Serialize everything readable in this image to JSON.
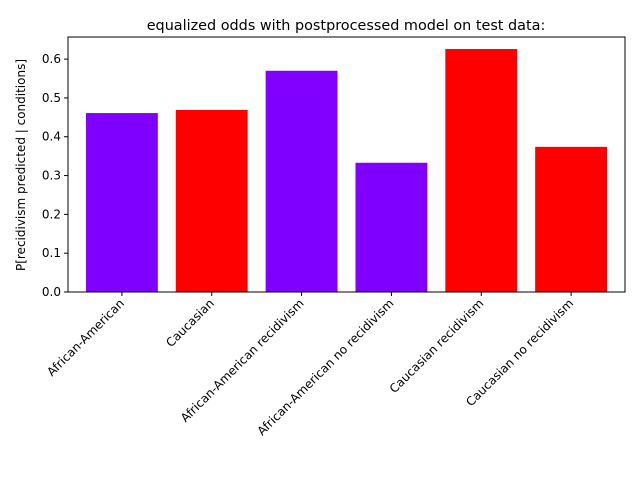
{
  "chart_data": {
    "type": "bar",
    "title": "equalized odds with postprocessed model on test data:",
    "xlabel": "",
    "ylabel": "P[recidivism predicted | conditions]",
    "categories": [
      "African-American",
      "Caucasian",
      "African-American recidivism",
      "African-American no recidivism",
      "Caucasian recidivism",
      "Caucasian no recidivism"
    ],
    "values": [
      0.461,
      0.469,
      0.57,
      0.333,
      0.626,
      0.374
    ],
    "bar_colors": [
      "#8000ff",
      "#ff0000",
      "#8000ff",
      "#8000ff",
      "#ff0000",
      "#ff0000"
    ],
    "ylim": [
      0,
      0.657
    ],
    "yticks": [
      0.0,
      0.1,
      0.2,
      0.3,
      0.4,
      0.5,
      0.6
    ],
    "ytick_labels": [
      "0.0",
      "0.1",
      "0.2",
      "0.3",
      "0.4",
      "0.5",
      "0.6"
    ],
    "grid": false,
    "legend": "none"
  }
}
